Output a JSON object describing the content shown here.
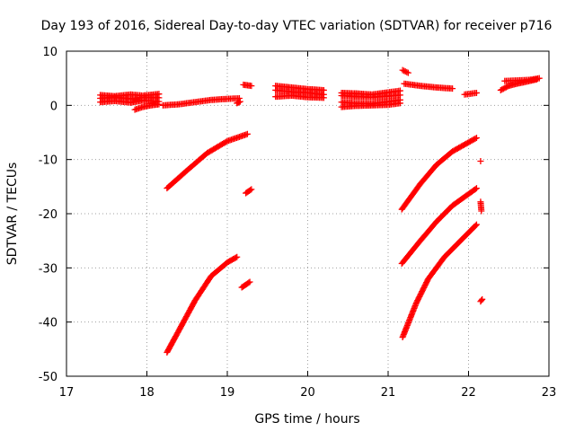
{
  "chart_data": {
    "type": "scatter",
    "title": "Day 193 of 2016, Sidereal Day-to-day VTEC variation (SDTVAR) for receiver p716",
    "xlabel": "GPS time / hours",
    "ylabel": "SDTVAR / TECUs",
    "xlim": [
      17,
      23
    ],
    "ylim": [
      -50,
      10
    ],
    "xticks": [
      17,
      18,
      19,
      20,
      21,
      22,
      23
    ],
    "yticks": [
      10,
      0,
      -10,
      -20,
      -30,
      -40,
      -50
    ],
    "grid": true,
    "marker": "plus",
    "color": "#ff0000",
    "series": [
      {
        "segments": [
          [
            [
              17.42,
              1.3
            ],
            [
              17.6,
              1.5
            ],
            [
              17.8,
              1.2
            ],
            [
              17.95,
              1.5
            ],
            [
              18.15,
              1.4
            ]
          ],
          [
            [
              17.42,
              0.6
            ],
            [
              17.6,
              0.8
            ],
            [
              17.8,
              0.5
            ],
            [
              17.95,
              0.9
            ],
            [
              18.15,
              0.7
            ]
          ],
          [
            [
              17.42,
              1.9
            ],
            [
              17.6,
              1.7
            ],
            [
              17.8,
              2.0
            ],
            [
              17.95,
              1.8
            ],
            [
              18.15,
              2.1
            ]
          ],
          [
            [
              17.85,
              -0.8
            ],
            [
              17.95,
              -0.3
            ],
            [
              18.05,
              0.0
            ],
            [
              18.15,
              0.2
            ]
          ],
          [
            [
              18.2,
              0.0
            ],
            [
              18.4,
              0.2
            ],
            [
              18.6,
              0.6
            ],
            [
              18.8,
              1.0
            ],
            [
              19.0,
              1.2
            ],
            [
              19.15,
              1.3
            ]
          ],
          [
            [
              19.12,
              0.4
            ],
            [
              19.16,
              0.7
            ]
          ],
          [
            [
              19.2,
              3.8
            ],
            [
              19.3,
              3.6
            ]
          ],
          [
            [
              19.6,
              2.8
            ],
            [
              19.8,
              2.5
            ],
            [
              20.0,
              2.3
            ],
            [
              20.2,
              2.0
            ]
          ],
          [
            [
              19.6,
              1.6
            ],
            [
              19.8,
              1.8
            ],
            [
              20.0,
              1.5
            ],
            [
              20.2,
              1.4
            ]
          ],
          [
            [
              19.6,
              3.6
            ],
            [
              19.8,
              3.3
            ],
            [
              20.0,
              3.0
            ],
            [
              20.2,
              2.8
            ]
          ],
          [
            [
              20.42,
              1.8
            ],
            [
              20.6,
              1.6
            ],
            [
              20.8,
              1.5
            ],
            [
              21.0,
              1.7
            ],
            [
              21.15,
              1.9
            ]
          ],
          [
            [
              20.42,
              0.6
            ],
            [
              20.6,
              0.4
            ],
            [
              20.8,
              0.3
            ],
            [
              21.0,
              0.7
            ],
            [
              21.15,
              1.0
            ]
          ],
          [
            [
              20.42,
              -0.3
            ],
            [
              20.6,
              -0.1
            ],
            [
              20.8,
              0.0
            ],
            [
              21.0,
              0.1
            ],
            [
              21.15,
              0.4
            ]
          ],
          [
            [
              20.42,
              2.3
            ],
            [
              20.6,
              2.2
            ],
            [
              20.8,
              2.0
            ],
            [
              21.0,
              2.4
            ],
            [
              21.15,
              2.7
            ]
          ],
          [
            [
              21.18,
              6.5
            ],
            [
              21.25,
              6.0
            ]
          ],
          [
            [
              21.2,
              4.0
            ],
            [
              21.4,
              3.6
            ],
            [
              21.6,
              3.3
            ],
            [
              21.8,
              3.1
            ]
          ],
          [
            [
              21.95,
              2.0
            ],
            [
              22.1,
              2.3
            ]
          ],
          [
            [
              22.4,
              2.8
            ],
            [
              22.5,
              3.6
            ],
            [
              22.6,
              4.0
            ],
            [
              22.7,
              4.3
            ],
            [
              22.85,
              4.8
            ]
          ],
          [
            [
              22.45,
              4.5
            ],
            [
              22.6,
              4.6
            ],
            [
              22.75,
              4.7
            ],
            [
              22.88,
              5.0
            ]
          ],
          [
            [
              18.25,
              -15.3
            ],
            [
              18.5,
              -12.0
            ],
            [
              18.75,
              -8.8
            ],
            [
              19.0,
              -6.6
            ],
            [
              19.25,
              -5.3
            ]
          ],
          [
            [
              19.23,
              -16.2
            ],
            [
              19.3,
              -15.5
            ]
          ],
          [
            [
              18.25,
              -45.6
            ],
            [
              18.4,
              -41.5
            ],
            [
              18.6,
              -36.0
            ],
            [
              18.8,
              -31.5
            ],
            [
              19.0,
              -29.0
            ],
            [
              19.12,
              -28.0
            ]
          ],
          [
            [
              19.18,
              -33.6
            ],
            [
              19.28,
              -32.6
            ]
          ],
          [
            [
              21.17,
              -19.2
            ],
            [
              21.4,
              -14.5
            ],
            [
              21.6,
              -11.0
            ],
            [
              21.8,
              -8.5
            ],
            [
              22.1,
              -6.0
            ]
          ],
          [
            [
              21.17,
              -29.2
            ],
            [
              21.4,
              -25.0
            ],
            [
              21.6,
              -21.5
            ],
            [
              21.8,
              -18.5
            ],
            [
              22.1,
              -15.3
            ]
          ],
          [
            [
              21.18,
              -42.8
            ],
            [
              21.35,
              -36.5
            ],
            [
              21.5,
              -32.0
            ],
            [
              21.7,
              -28.0
            ],
            [
              21.9,
              -25.0
            ],
            [
              22.1,
              -22.0
            ]
          ],
          [
            [
              22.15,
              -10.3
            ]
          ],
          [
            [
              22.15,
              -17.8
            ],
            [
              22.16,
              -19.5
            ]
          ],
          [
            [
              22.15,
              -36.2
            ],
            [
              22.17,
              -35.8
            ]
          ]
        ]
      }
    ]
  }
}
